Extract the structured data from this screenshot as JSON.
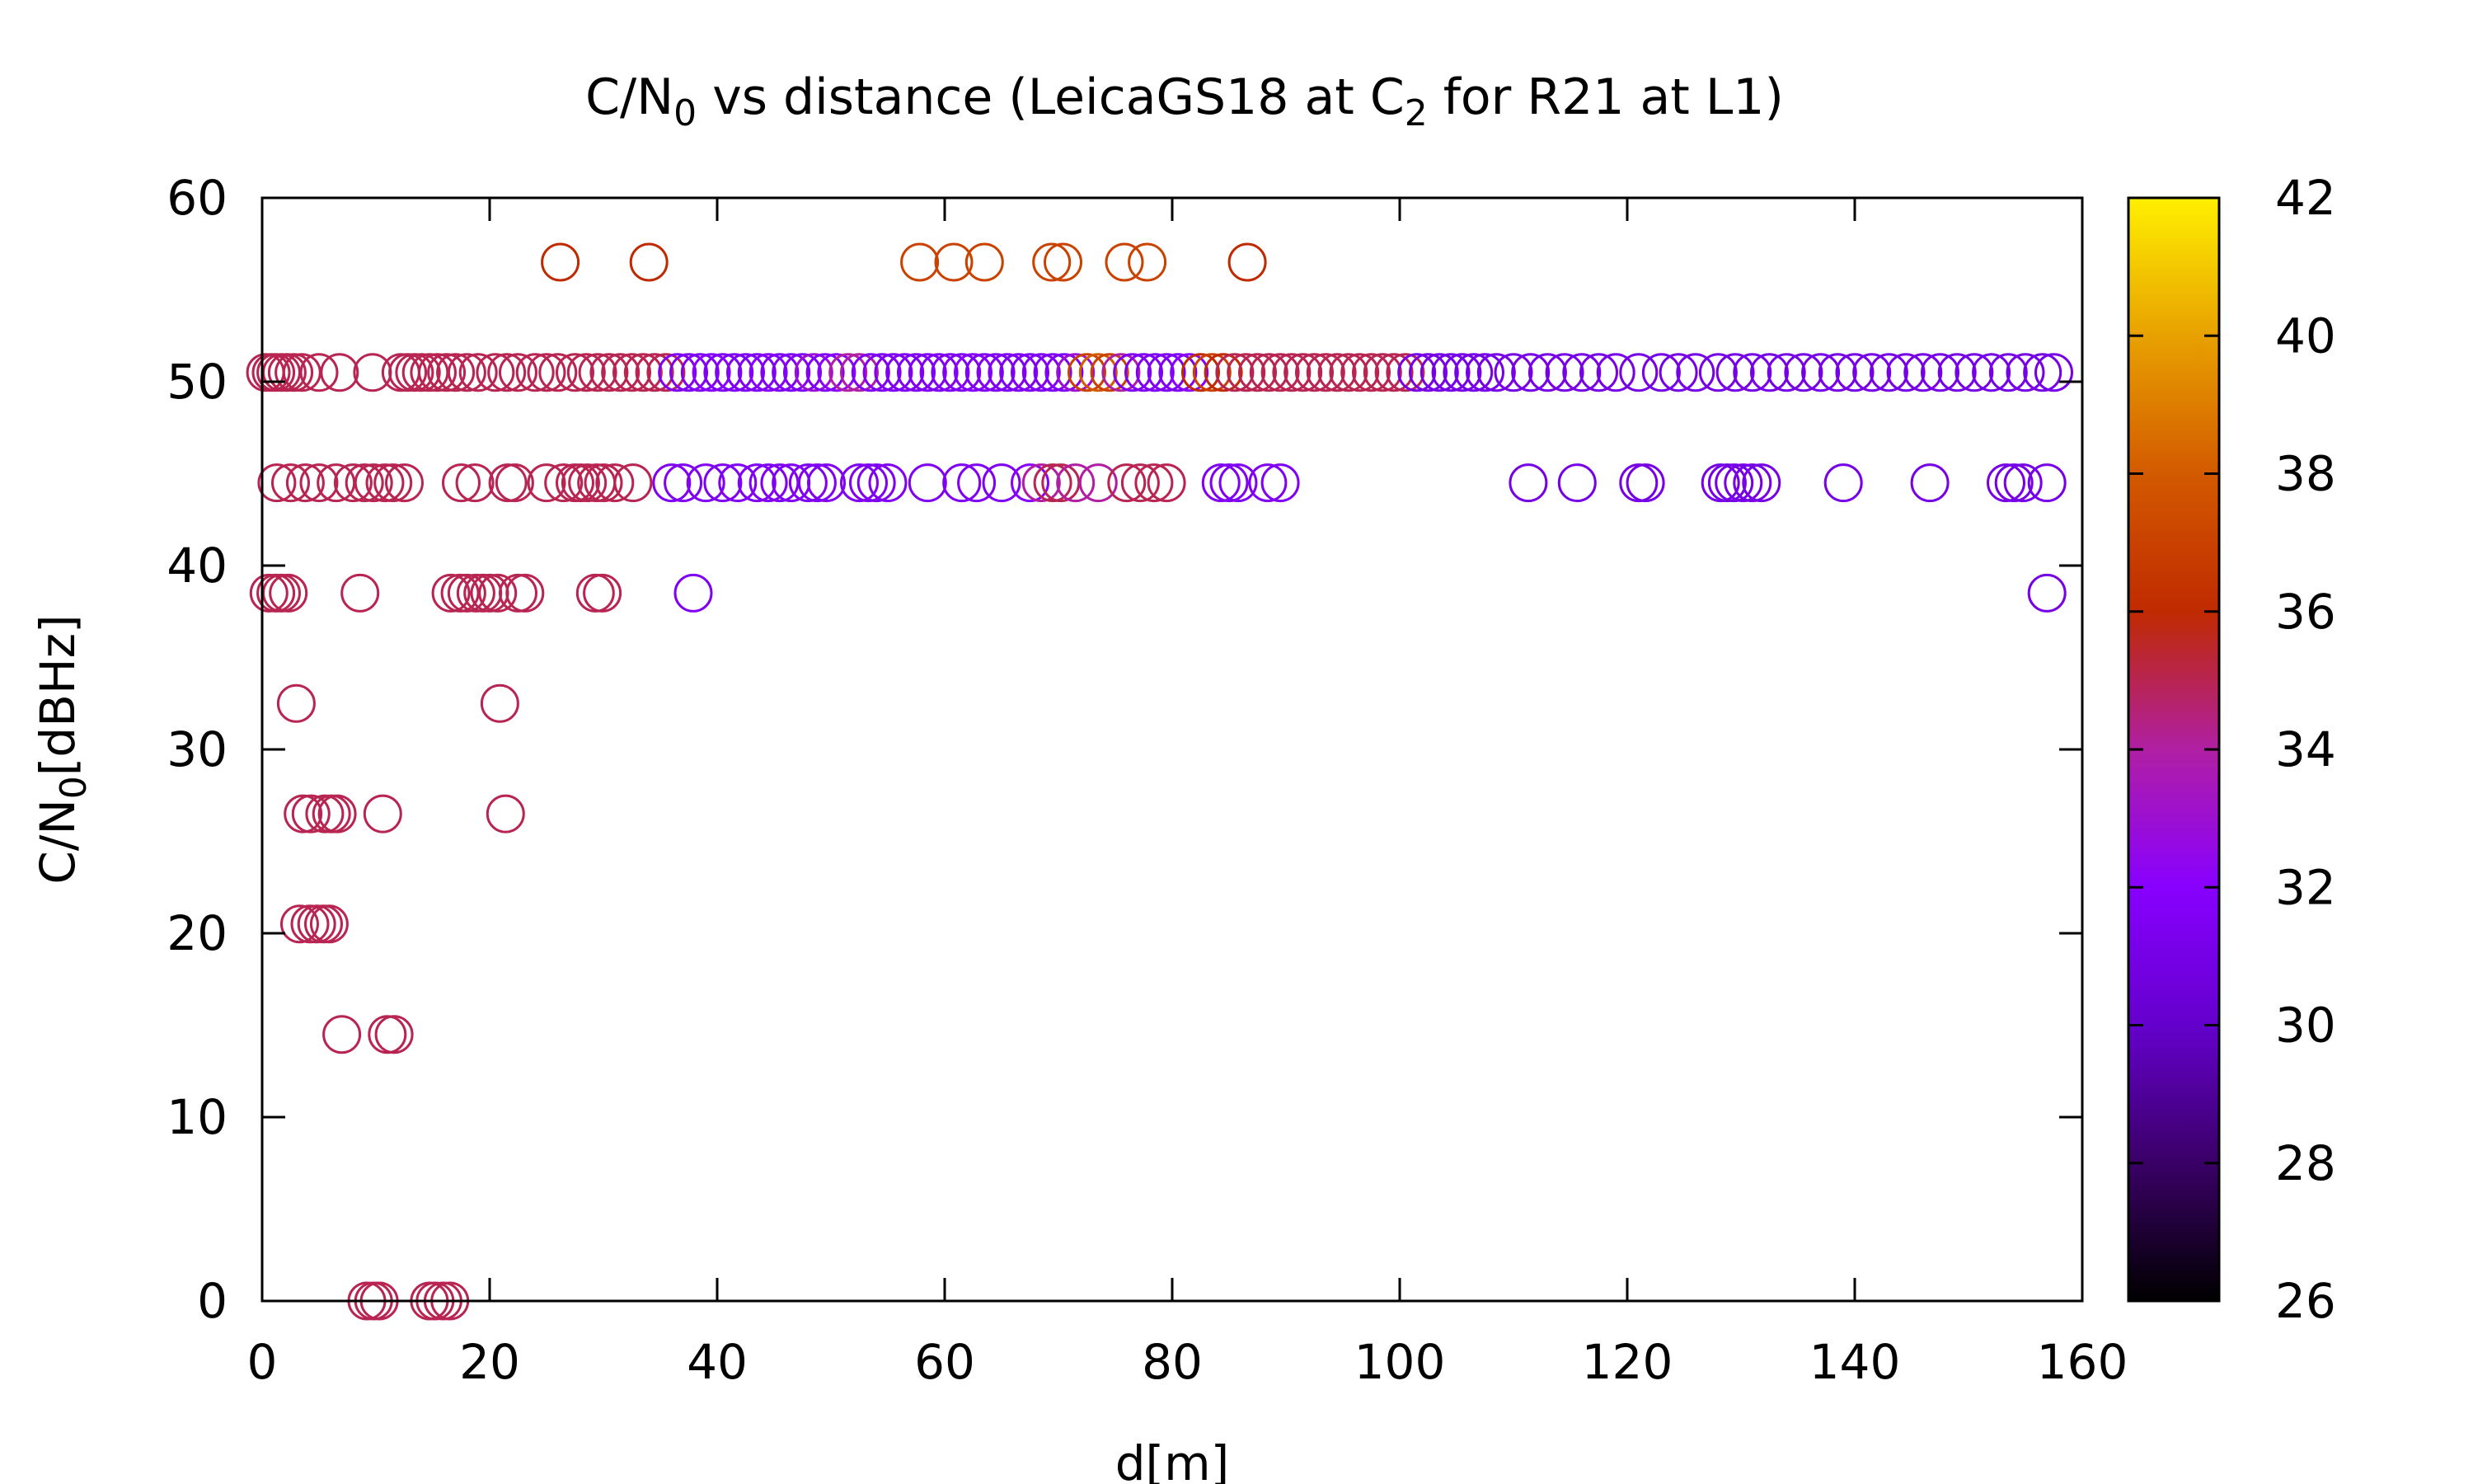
{
  "chart_data": {
    "type": "scatter",
    "title": {
      "main": "C/N",
      "sub1": "0",
      "mid": " vs distance (LeicaGS18 at C",
      "sub2": "2",
      "tail": " for R21 at L1)"
    },
    "xlabel": "d[m]",
    "ylabel": {
      "main": "C/N",
      "sub": "0",
      "tail": "[dBHz]"
    },
    "xlim": [
      0,
      160
    ],
    "ylim": [
      0,
      60
    ],
    "xticks": [
      "0",
      "20",
      "40",
      "60",
      "80",
      "100",
      "120",
      "140",
      "160"
    ],
    "yticks": [
      "0",
      "10",
      "20",
      "30",
      "40",
      "50",
      "60"
    ],
    "colorbar": {
      "range": [
        26,
        42
      ],
      "ticks": [
        "26",
        "28",
        "30",
        "32",
        "34",
        "36",
        "38",
        "40",
        "42"
      ]
    },
    "grid": false,
    "legend": "none",
    "marker": "open circle",
    "palette": [
      "#000000",
      "#3a0066",
      "#6400cc",
      "#8800ff",
      "#b01fa3",
      "#c02a00",
      "#d35a00",
      "#e8a100",
      "#fff000"
    ],
    "points": [
      [
        0.3,
        50.5,
        35
      ],
      [
        0.8,
        50.5,
        35
      ],
      [
        1.2,
        50.5,
        35
      ],
      [
        1.7,
        50.5,
        35
      ],
      [
        2.2,
        50.5,
        35
      ],
      [
        2.8,
        50.5,
        35
      ],
      [
        3.5,
        50.5,
        35
      ],
      [
        5.0,
        50.5,
        35
      ],
      [
        6.8,
        50.5,
        35
      ],
      [
        9.7,
        50.5,
        35
      ],
      [
        12.2,
        50.5,
        35
      ],
      [
        12.8,
        50.5,
        35
      ],
      [
        13.4,
        50.5,
        35
      ],
      [
        14.0,
        50.5,
        35
      ],
      [
        14.7,
        50.5,
        35
      ],
      [
        15.4,
        50.5,
        35
      ],
      [
        16.2,
        50.5,
        35
      ],
      [
        17.0,
        50.5,
        35
      ],
      [
        18.0,
        50.5,
        35
      ],
      [
        19.0,
        50.5,
        35
      ],
      [
        20.5,
        50.5,
        35
      ],
      [
        21.5,
        50.5,
        35
      ],
      [
        22.5,
        50.5,
        35
      ],
      [
        24.0,
        50.5,
        35
      ],
      [
        25.0,
        50.5,
        35
      ],
      [
        26.0,
        50.5,
        35
      ],
      [
        27.5,
        50.5,
        35
      ],
      [
        28.5,
        50.5,
        35
      ],
      [
        29.5,
        50.5,
        35
      ],
      [
        30.5,
        50.5,
        35
      ],
      [
        31.5,
        50.5,
        35
      ],
      [
        32.5,
        50.5,
        35
      ],
      [
        33.5,
        50.5,
        35
      ],
      [
        34.5,
        50.5,
        35
      ],
      [
        35.5,
        50.5,
        35
      ],
      [
        36.5,
        50.5,
        31.5
      ],
      [
        37.5,
        50.5,
        31.5
      ],
      [
        38.5,
        50.5,
        31.5
      ],
      [
        39.5,
        50.5,
        32
      ],
      [
        40.5,
        50.5,
        31.5
      ],
      [
        41.5,
        50.5,
        31.5
      ],
      [
        42.5,
        50.5,
        31.5
      ],
      [
        43.5,
        50.5,
        31.5
      ],
      [
        44.5,
        50.5,
        32
      ],
      [
        45.5,
        50.5,
        31.5
      ],
      [
        46.5,
        50.5,
        31.5
      ],
      [
        47.5,
        50.5,
        31.5
      ],
      [
        48.5,
        50.5,
        33
      ],
      [
        49.5,
        50.5,
        31.5
      ],
      [
        50.5,
        50.5,
        32
      ],
      [
        51.5,
        50.5,
        34
      ],
      [
        52.5,
        50.5,
        34
      ],
      [
        53.5,
        50.5,
        31.5
      ],
      [
        54.5,
        50.5,
        31.5
      ],
      [
        55.5,
        50.5,
        31.5
      ],
      [
        56.5,
        50.5,
        31.5
      ],
      [
        57.5,
        50.5,
        31.5
      ],
      [
        58.5,
        50.5,
        31.5
      ],
      [
        59.5,
        50.5,
        31.5
      ],
      [
        60.5,
        50.5,
        31.5
      ],
      [
        61.5,
        50.5,
        31.5
      ],
      [
        62.5,
        50.5,
        32
      ],
      [
        63.5,
        50.5,
        31.5
      ],
      [
        64.5,
        50.5,
        31.5
      ],
      [
        65.5,
        50.5,
        31.5
      ],
      [
        66.5,
        50.5,
        31.5
      ],
      [
        67.5,
        50.5,
        31.5
      ],
      [
        68.5,
        50.5,
        31.5
      ],
      [
        69.5,
        50.5,
        31.5
      ],
      [
        70.5,
        50.5,
        31.5
      ],
      [
        71.5,
        50.5,
        33
      ],
      [
        72.5,
        50.5,
        37
      ],
      [
        73.5,
        50.5,
        38
      ],
      [
        74.5,
        50.5,
        37
      ],
      [
        75.5,
        50.5,
        34
      ],
      [
        76.5,
        50.5,
        31.5
      ],
      [
        77.5,
        50.5,
        31.5
      ],
      [
        78.5,
        50.5,
        31.5
      ],
      [
        79.5,
        50.5,
        31.5
      ],
      [
        80.5,
        50.5,
        31.5
      ],
      [
        81.5,
        50.5,
        32
      ],
      [
        82.5,
        50.5,
        36
      ],
      [
        83.5,
        50.5,
        37
      ],
      [
        84.5,
        50.5,
        36
      ],
      [
        85.5,
        50.5,
        35
      ],
      [
        86.5,
        50.5,
        35
      ],
      [
        87.5,
        50.5,
        35
      ],
      [
        88.5,
        50.5,
        35
      ],
      [
        89.5,
        50.5,
        35
      ],
      [
        90.5,
        50.5,
        35
      ],
      [
        91.5,
        50.5,
        35
      ],
      [
        92.5,
        50.5,
        35
      ],
      [
        93.5,
        50.5,
        35
      ],
      [
        94.5,
        50.5,
        35
      ],
      [
        95.5,
        50.5,
        35
      ],
      [
        96.5,
        50.5,
        35
      ],
      [
        97.5,
        50.5,
        35
      ],
      [
        98.5,
        50.5,
        35
      ],
      [
        99.5,
        50.5,
        35
      ],
      [
        100.5,
        50.5,
        35
      ],
      [
        101.5,
        50.5,
        31
      ],
      [
        102.5,
        50.5,
        31
      ],
      [
        103.5,
        50.5,
        31
      ],
      [
        104.5,
        50.5,
        31
      ],
      [
        105.5,
        50.5,
        31
      ],
      [
        106.5,
        50.5,
        31
      ],
      [
        107.5,
        50.5,
        31
      ],
      [
        108.5,
        50.5,
        31
      ],
      [
        110.0,
        50.5,
        31
      ],
      [
        111.5,
        50.5,
        31
      ],
      [
        113.0,
        50.5,
        31
      ],
      [
        114.5,
        50.5,
        31
      ],
      [
        116.0,
        50.5,
        31
      ],
      [
        117.5,
        50.5,
        31
      ],
      [
        119.0,
        50.5,
        31
      ],
      [
        121.0,
        50.5,
        31
      ],
      [
        123.0,
        50.5,
        31
      ],
      [
        124.5,
        50.5,
        31
      ],
      [
        126.0,
        50.5,
        31
      ],
      [
        128.0,
        50.5,
        31
      ],
      [
        129.5,
        50.5,
        31
      ],
      [
        131.0,
        50.5,
        31
      ],
      [
        132.5,
        50.5,
        31
      ],
      [
        134.0,
        50.5,
        31
      ],
      [
        135.5,
        50.5,
        31
      ],
      [
        137.0,
        50.5,
        31
      ],
      [
        138.5,
        50.5,
        31
      ],
      [
        140.0,
        50.5,
        31
      ],
      [
        141.5,
        50.5,
        31
      ],
      [
        143.0,
        50.5,
        31
      ],
      [
        144.5,
        50.5,
        31
      ],
      [
        146.0,
        50.5,
        31
      ],
      [
        147.5,
        50.5,
        31
      ],
      [
        149.0,
        50.5,
        31
      ],
      [
        150.5,
        50.5,
        31
      ],
      [
        152.0,
        50.5,
        31
      ],
      [
        153.5,
        50.5,
        31
      ],
      [
        155.0,
        50.5,
        31
      ],
      [
        156.5,
        50.5,
        31
      ],
      [
        157.5,
        50.5,
        31
      ],
      [
        1.3,
        44.5,
        35
      ],
      [
        2.5,
        44.5,
        35
      ],
      [
        3.8,
        44.5,
        35
      ],
      [
        5.0,
        44.5,
        35
      ],
      [
        6.5,
        44.5,
        35
      ],
      [
        8.0,
        44.5,
        35
      ],
      [
        9.0,
        44.5,
        35
      ],
      [
        9.8,
        44.5,
        35
      ],
      [
        10.8,
        44.5,
        35
      ],
      [
        11.5,
        44.5,
        35
      ],
      [
        12.5,
        44.5,
        35
      ],
      [
        17.5,
        44.5,
        35
      ],
      [
        18.7,
        44.5,
        35
      ],
      [
        21.6,
        44.5,
        35
      ],
      [
        22.2,
        44.5,
        35
      ],
      [
        25.0,
        44.5,
        35
      ],
      [
        26.5,
        44.5,
        35
      ],
      [
        27.5,
        44.5,
        35
      ],
      [
        28.0,
        44.5,
        35
      ],
      [
        28.6,
        44.5,
        35
      ],
      [
        29.4,
        44.5,
        35
      ],
      [
        30.0,
        44.5,
        35
      ],
      [
        31.0,
        44.5,
        35
      ],
      [
        32.6,
        44.5,
        35
      ],
      [
        36.0,
        44.5,
        31.5
      ],
      [
        37.0,
        44.5,
        31.5
      ],
      [
        39.0,
        44.5,
        31.5
      ],
      [
        40.5,
        44.5,
        31.5
      ],
      [
        41.8,
        44.5,
        31.5
      ],
      [
        43.5,
        44.5,
        31.5
      ],
      [
        44.5,
        44.5,
        31.5
      ],
      [
        45.5,
        44.5,
        31.5
      ],
      [
        46.5,
        44.5,
        31.5
      ],
      [
        48.0,
        44.5,
        31.5
      ],
      [
        48.8,
        44.5,
        31.5
      ],
      [
        49.6,
        44.5,
        31.5
      ],
      [
        52.5,
        44.5,
        31.5
      ],
      [
        53.3,
        44.5,
        31.5
      ],
      [
        54.0,
        44.5,
        31.5
      ],
      [
        55.0,
        44.5,
        31.5
      ],
      [
        58.5,
        44.5,
        31.5
      ],
      [
        61.5,
        44.5,
        31.5
      ],
      [
        62.8,
        44.5,
        31.5
      ],
      [
        65.0,
        44.5,
        31.5
      ],
      [
        67.5,
        44.5,
        32
      ],
      [
        68.5,
        44.5,
        34
      ],
      [
        69.5,
        44.5,
        35
      ],
      [
        70.2,
        44.5,
        35
      ],
      [
        71.5,
        44.5,
        34
      ],
      [
        73.5,
        44.5,
        34
      ],
      [
        76.0,
        44.5,
        35
      ],
      [
        77.2,
        44.5,
        35
      ],
      [
        78.4,
        44.5,
        35
      ],
      [
        79.5,
        44.5,
        35
      ],
      [
        84.3,
        44.5,
        31.5
      ],
      [
        85.0,
        44.5,
        31.5
      ],
      [
        85.8,
        44.5,
        31.5
      ],
      [
        88.4,
        44.5,
        31.5
      ],
      [
        89.5,
        44.5,
        31.5
      ],
      [
        111.3,
        44.5,
        31
      ],
      [
        115.6,
        44.5,
        31
      ],
      [
        121.0,
        44.5,
        31
      ],
      [
        121.6,
        44.5,
        31
      ],
      [
        128.2,
        44.5,
        31
      ],
      [
        128.8,
        44.5,
        31
      ],
      [
        129.4,
        44.5,
        31
      ],
      [
        130.2,
        44.5,
        31
      ],
      [
        131.0,
        44.5,
        31
      ],
      [
        131.8,
        44.5,
        31
      ],
      [
        139.0,
        44.5,
        31
      ],
      [
        146.6,
        44.5,
        31
      ],
      [
        153.3,
        44.5,
        31
      ],
      [
        154.0,
        44.5,
        31
      ],
      [
        154.8,
        44.5,
        31
      ],
      [
        156.9,
        44.5,
        31
      ],
      [
        0.6,
        38.5,
        35
      ],
      [
        1.2,
        38.5,
        35
      ],
      [
        1.7,
        38.5,
        35
      ],
      [
        2.3,
        38.5,
        35
      ],
      [
        8.6,
        38.5,
        35
      ],
      [
        16.6,
        38.5,
        35
      ],
      [
        17.4,
        38.5,
        35
      ],
      [
        18.0,
        38.5,
        35
      ],
      [
        18.8,
        38.5,
        35
      ],
      [
        19.4,
        38.5,
        35
      ],
      [
        20.0,
        38.5,
        35
      ],
      [
        20.7,
        38.5,
        35
      ],
      [
        22.5,
        38.5,
        35
      ],
      [
        23.1,
        38.5,
        35
      ],
      [
        29.3,
        38.5,
        35
      ],
      [
        29.9,
        38.5,
        35
      ],
      [
        37.9,
        38.5,
        31.5
      ],
      [
        156.9,
        38.5,
        31
      ],
      [
        3.0,
        32.5,
        35
      ],
      [
        20.9,
        32.5,
        35
      ],
      [
        3.6,
        26.5,
        35
      ],
      [
        4.3,
        26.5,
        35
      ],
      [
        5.5,
        26.5,
        35
      ],
      [
        6.1,
        26.5,
        35
      ],
      [
        6.6,
        26.5,
        35
      ],
      [
        10.6,
        26.5,
        35
      ],
      [
        21.4,
        26.5,
        35
      ],
      [
        3.3,
        20.5,
        35
      ],
      [
        4.2,
        20.5,
        35
      ],
      [
        4.8,
        20.5,
        35
      ],
      [
        5.4,
        20.5,
        35
      ],
      [
        5.9,
        20.5,
        35
      ],
      [
        7.0,
        14.5,
        35
      ],
      [
        11.0,
        14.5,
        35
      ],
      [
        11.6,
        14.5,
        35
      ],
      [
        9.2,
        0,
        35
      ],
      [
        9.8,
        0,
        35
      ],
      [
        10.3,
        0,
        35
      ],
      [
        14.7,
        0,
        35
      ],
      [
        15.2,
        0,
        35
      ],
      [
        15.9,
        0,
        35
      ],
      [
        16.5,
        0,
        35
      ],
      [
        26.2,
        56.5,
        36
      ],
      [
        34.0,
        56.5,
        36
      ],
      [
        57.8,
        56.5,
        37
      ],
      [
        60.8,
        56.5,
        37
      ],
      [
        63.5,
        56.5,
        37
      ],
      [
        69.4,
        56.5,
        37
      ],
      [
        70.4,
        56.5,
        37
      ],
      [
        75.8,
        56.5,
        37
      ],
      [
        77.8,
        56.5,
        37
      ],
      [
        86.6,
        56.5,
        36
      ]
    ]
  }
}
